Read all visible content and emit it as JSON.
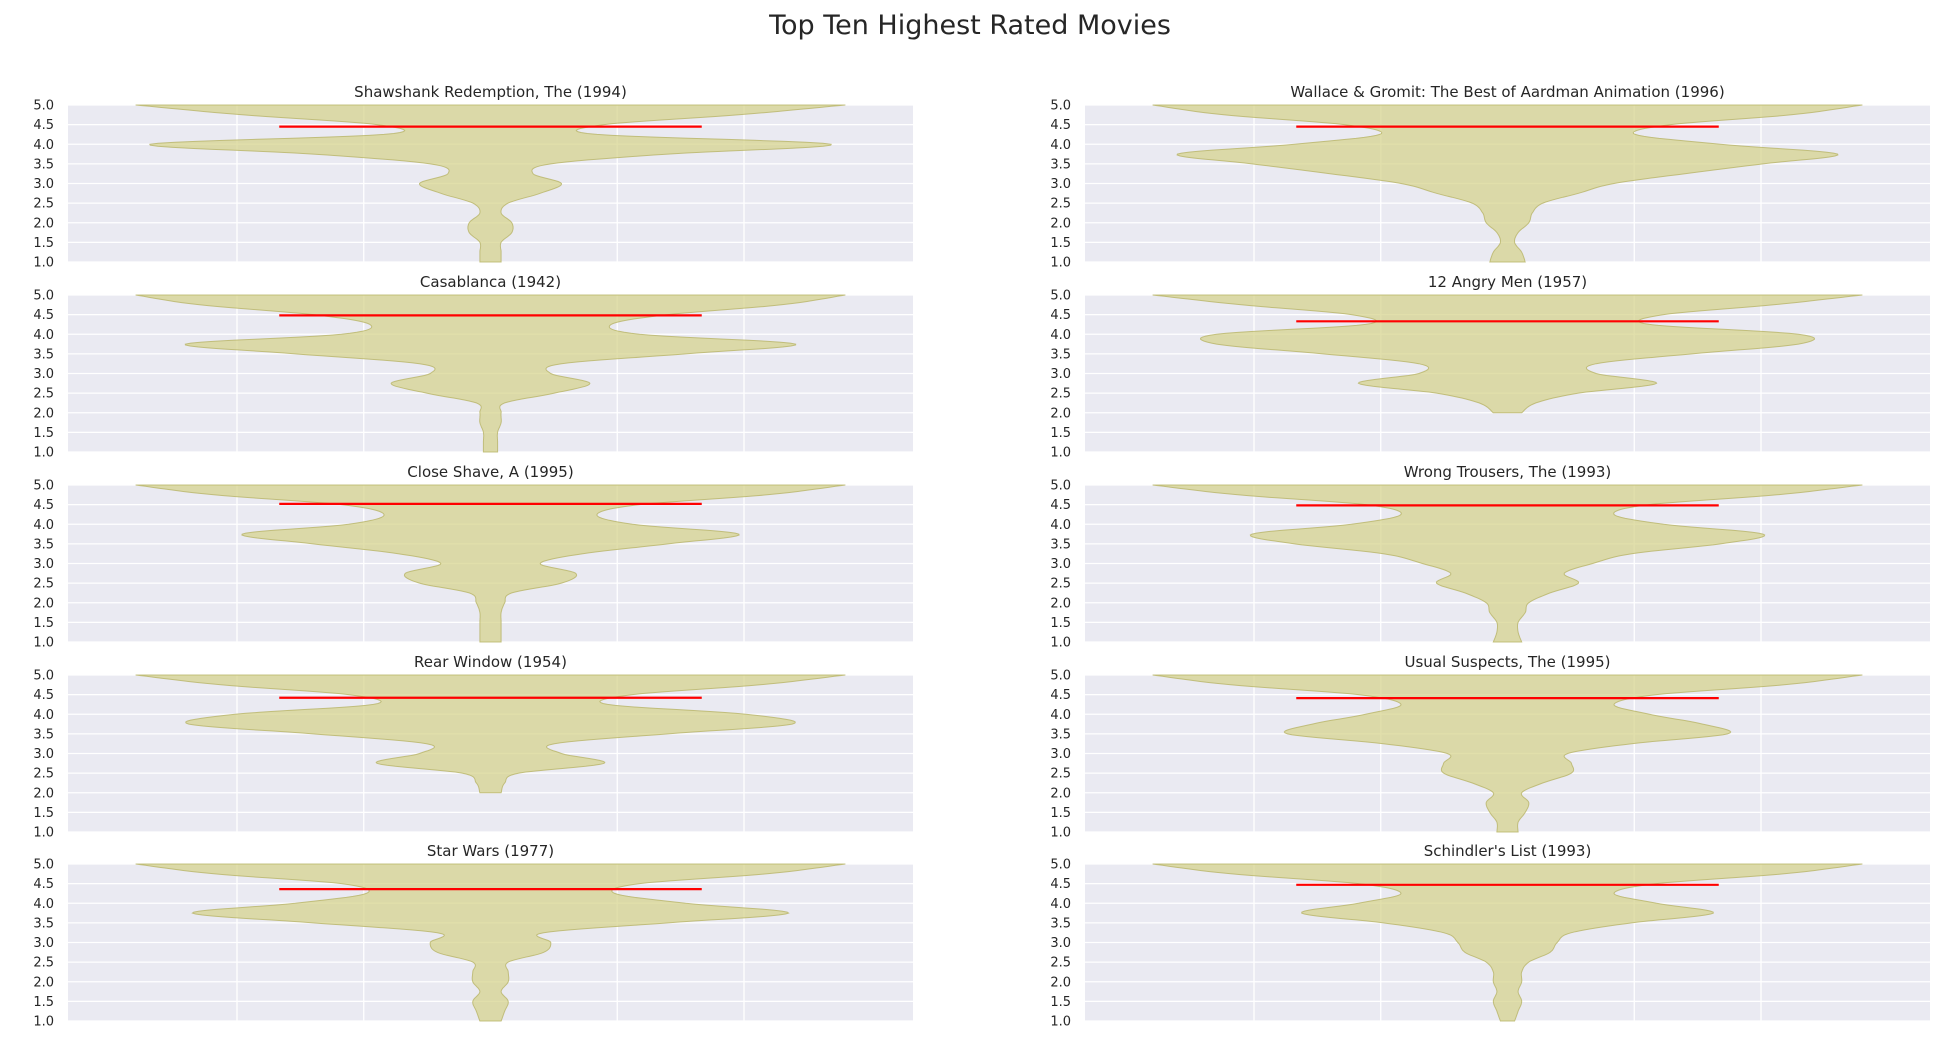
{
  "figure": {
    "title": "Top Ten Highest Rated Movies"
  },
  "chart_data": [
    {
      "type": "violin",
      "title": "Shawshank Redemption, The (1994)",
      "ylim": [
        1.0,
        5.0
      ],
      "yticks": [
        "5.0",
        "4.5",
        "4.0",
        "3.5",
        "3.0",
        "2.5",
        "2.0",
        "1.5",
        "1.0"
      ],
      "mean": 4.45,
      "density": [
        [
          1.0,
          0.03
        ],
        [
          1.25,
          0.03
        ],
        [
          1.5,
          0.03
        ],
        [
          1.75,
          0.06
        ],
        [
          2.0,
          0.06
        ],
        [
          2.25,
          0.03
        ],
        [
          2.5,
          0.05
        ],
        [
          2.75,
          0.14
        ],
        [
          3.0,
          0.2
        ],
        [
          3.25,
          0.12
        ],
        [
          3.5,
          0.17
        ],
        [
          3.75,
          0.5
        ],
        [
          4.0,
          0.96
        ],
        [
          4.25,
          0.3
        ],
        [
          4.5,
          0.32
        ],
        [
          4.75,
          0.7
        ],
        [
          5.0,
          1.0
        ]
      ]
    },
    {
      "type": "violin",
      "title": "Wallace & Gromit: The Best of Aardman Animation (1996)",
      "ylim": [
        1.0,
        5.0
      ],
      "yticks": [
        "5.0",
        "4.5",
        "4.0",
        "3.5",
        "3.0",
        "2.5",
        "2.0",
        "1.5",
        "1.0"
      ],
      "mean": 4.45,
      "density": [
        [
          1.0,
          0.05
        ],
        [
          1.25,
          0.04
        ],
        [
          1.5,
          0.02
        ],
        [
          1.75,
          0.03
        ],
        [
          2.0,
          0.06
        ],
        [
          2.25,
          0.07
        ],
        [
          2.5,
          0.1
        ],
        [
          2.75,
          0.2
        ],
        [
          3.0,
          0.3
        ],
        [
          3.25,
          0.5
        ],
        [
          3.5,
          0.72
        ],
        [
          3.75,
          0.93
        ],
        [
          4.0,
          0.6
        ],
        [
          4.25,
          0.36
        ],
        [
          4.5,
          0.46
        ],
        [
          4.75,
          0.8
        ],
        [
          5.0,
          1.0
        ]
      ]
    },
    {
      "type": "violin",
      "title": "Casablanca (1942)",
      "ylim": [
        1.0,
        5.0
      ],
      "yticks": [
        "5.0",
        "4.5",
        "4.0",
        "3.5",
        "3.0",
        "2.5",
        "2.0",
        "1.5",
        "1.0"
      ],
      "mean": 4.48,
      "density": [
        [
          1.0,
          0.02
        ],
        [
          1.25,
          0.02
        ],
        [
          1.5,
          0.02
        ],
        [
          1.75,
          0.03
        ],
        [
          2.0,
          0.03
        ],
        [
          2.25,
          0.04
        ],
        [
          2.5,
          0.18
        ],
        [
          2.75,
          0.28
        ],
        [
          3.0,
          0.17
        ],
        [
          3.25,
          0.2
        ],
        [
          3.5,
          0.55
        ],
        [
          3.75,
          0.86
        ],
        [
          4.0,
          0.42
        ],
        [
          4.25,
          0.34
        ],
        [
          4.5,
          0.5
        ],
        [
          4.75,
          0.82
        ],
        [
          5.0,
          1.0
        ]
      ]
    },
    {
      "type": "violin",
      "title": "12 Angry Men (1957)",
      "ylim": [
        1.0,
        5.0
      ],
      "yticks": [
        "5.0",
        "4.5",
        "4.0",
        "3.5",
        "3.0",
        "2.5",
        "2.0",
        "1.5",
        "1.0"
      ],
      "mean": 4.33,
      "density": [
        [
          2.0,
          0.04
        ],
        [
          2.25,
          0.08
        ],
        [
          2.5,
          0.2
        ],
        [
          2.75,
          0.42
        ],
        [
          3.0,
          0.25
        ],
        [
          3.25,
          0.25
        ],
        [
          3.5,
          0.52
        ],
        [
          3.75,
          0.82
        ],
        [
          4.0,
          0.82
        ],
        [
          4.25,
          0.4
        ],
        [
          4.5,
          0.44
        ],
        [
          4.75,
          0.75
        ],
        [
          5.0,
          1.0
        ]
      ]
    },
    {
      "type": "violin",
      "title": "Close Shave, A (1995)",
      "ylim": [
        1.0,
        5.0
      ],
      "yticks": [
        "5.0",
        "4.5",
        "4.0",
        "3.5",
        "3.0",
        "2.5",
        "2.0",
        "1.5",
        "1.0"
      ],
      "mean": 4.52,
      "density": [
        [
          1.0,
          0.03
        ],
        [
          1.25,
          0.03
        ],
        [
          1.5,
          0.03
        ],
        [
          1.75,
          0.03
        ],
        [
          2.0,
          0.04
        ],
        [
          2.25,
          0.06
        ],
        [
          2.5,
          0.2
        ],
        [
          2.75,
          0.24
        ],
        [
          3.0,
          0.14
        ],
        [
          3.25,
          0.26
        ],
        [
          3.5,
          0.5
        ],
        [
          3.75,
          0.7
        ],
        [
          4.0,
          0.4
        ],
        [
          4.25,
          0.3
        ],
        [
          4.5,
          0.42
        ],
        [
          4.75,
          0.78
        ],
        [
          5.0,
          1.0
        ]
      ]
    },
    {
      "type": "violin",
      "title": "Wrong Trousers, The (1993)",
      "ylim": [
        1.0,
        5.0
      ],
      "yticks": [
        "5.0",
        "4.5",
        "4.0",
        "3.5",
        "3.0",
        "2.5",
        "2.0",
        "1.5",
        "1.0"
      ],
      "mean": 4.48,
      "density": [
        [
          1.0,
          0.04
        ],
        [
          1.25,
          0.03
        ],
        [
          1.5,
          0.03
        ],
        [
          1.75,
          0.05
        ],
        [
          2.0,
          0.06
        ],
        [
          2.25,
          0.12
        ],
        [
          2.5,
          0.2
        ],
        [
          2.75,
          0.16
        ],
        [
          3.0,
          0.24
        ],
        [
          3.25,
          0.35
        ],
        [
          3.5,
          0.6
        ],
        [
          3.75,
          0.72
        ],
        [
          4.0,
          0.44
        ],
        [
          4.25,
          0.3
        ],
        [
          4.5,
          0.4
        ],
        [
          4.75,
          0.76
        ],
        [
          5.0,
          1.0
        ]
      ]
    },
    {
      "type": "violin",
      "title": "Rear Window (1954)",
      "ylim": [
        1.0,
        5.0
      ],
      "yticks": [
        "5.0",
        "4.5",
        "4.0",
        "3.5",
        "3.0",
        "2.5",
        "2.0",
        "1.5",
        "1.0"
      ],
      "mean": 4.42,
      "density": [
        [
          2.0,
          0.03
        ],
        [
          2.25,
          0.04
        ],
        [
          2.5,
          0.08
        ],
        [
          2.75,
          0.32
        ],
        [
          3.0,
          0.2
        ],
        [
          3.25,
          0.18
        ],
        [
          3.5,
          0.5
        ],
        [
          3.75,
          0.85
        ],
        [
          4.0,
          0.72
        ],
        [
          4.25,
          0.33
        ],
        [
          4.5,
          0.4
        ],
        [
          4.75,
          0.76
        ],
        [
          5.0,
          1.0
        ]
      ]
    },
    {
      "type": "violin",
      "title": "Usual Suspects, The (1995)",
      "ylim": [
        1.0,
        5.0
      ],
      "yticks": [
        "5.0",
        "4.5",
        "4.0",
        "3.5",
        "3.0",
        "2.5",
        "2.0",
        "1.5",
        "1.0"
      ],
      "mean": 4.41,
      "density": [
        [
          1.0,
          0.03
        ],
        [
          1.25,
          0.03
        ],
        [
          1.5,
          0.05
        ],
        [
          1.75,
          0.06
        ],
        [
          2.0,
          0.04
        ],
        [
          2.25,
          0.1
        ],
        [
          2.5,
          0.18
        ],
        [
          2.75,
          0.18
        ],
        [
          3.0,
          0.17
        ],
        [
          3.25,
          0.35
        ],
        [
          3.5,
          0.62
        ],
        [
          3.75,
          0.55
        ],
        [
          4.0,
          0.4
        ],
        [
          4.25,
          0.3
        ],
        [
          4.5,
          0.42
        ],
        [
          4.75,
          0.78
        ],
        [
          5.0,
          1.0
        ]
      ]
    },
    {
      "type": "violin",
      "title": "Star Wars (1977)",
      "ylim": [
        1.0,
        5.0
      ],
      "yticks": [
        "5.0",
        "4.5",
        "4.0",
        "3.5",
        "3.0",
        "2.5",
        "2.0",
        "1.5",
        "1.0"
      ],
      "mean": 4.36,
      "density": [
        [
          1.0,
          0.03
        ],
        [
          1.25,
          0.04
        ],
        [
          1.5,
          0.05
        ],
        [
          1.75,
          0.03
        ],
        [
          2.0,
          0.05
        ],
        [
          2.25,
          0.05
        ],
        [
          2.5,
          0.05
        ],
        [
          2.75,
          0.15
        ],
        [
          3.0,
          0.17
        ],
        [
          3.25,
          0.15
        ],
        [
          3.5,
          0.5
        ],
        [
          3.75,
          0.84
        ],
        [
          4.0,
          0.55
        ],
        [
          4.25,
          0.35
        ],
        [
          4.5,
          0.42
        ],
        [
          4.75,
          0.78
        ],
        [
          5.0,
          1.0
        ]
      ]
    },
    {
      "type": "violin",
      "title": "Schindler's List (1993)",
      "ylim": [
        1.0,
        5.0
      ],
      "yticks": [
        "5.0",
        "4.5",
        "4.0",
        "3.5",
        "3.0",
        "2.5",
        "2.0",
        "1.5",
        "1.0"
      ],
      "mean": 4.47,
      "density": [
        [
          1.0,
          0.02
        ],
        [
          1.25,
          0.03
        ],
        [
          1.5,
          0.04
        ],
        [
          1.75,
          0.03
        ],
        [
          2.0,
          0.04
        ],
        [
          2.25,
          0.04
        ],
        [
          2.5,
          0.06
        ],
        [
          2.75,
          0.12
        ],
        [
          3.0,
          0.14
        ],
        [
          3.25,
          0.18
        ],
        [
          3.5,
          0.35
        ],
        [
          3.75,
          0.58
        ],
        [
          4.0,
          0.42
        ],
        [
          4.25,
          0.3
        ],
        [
          4.5,
          0.42
        ],
        [
          4.75,
          0.78
        ],
        [
          5.0,
          1.0
        ]
      ]
    }
  ]
}
